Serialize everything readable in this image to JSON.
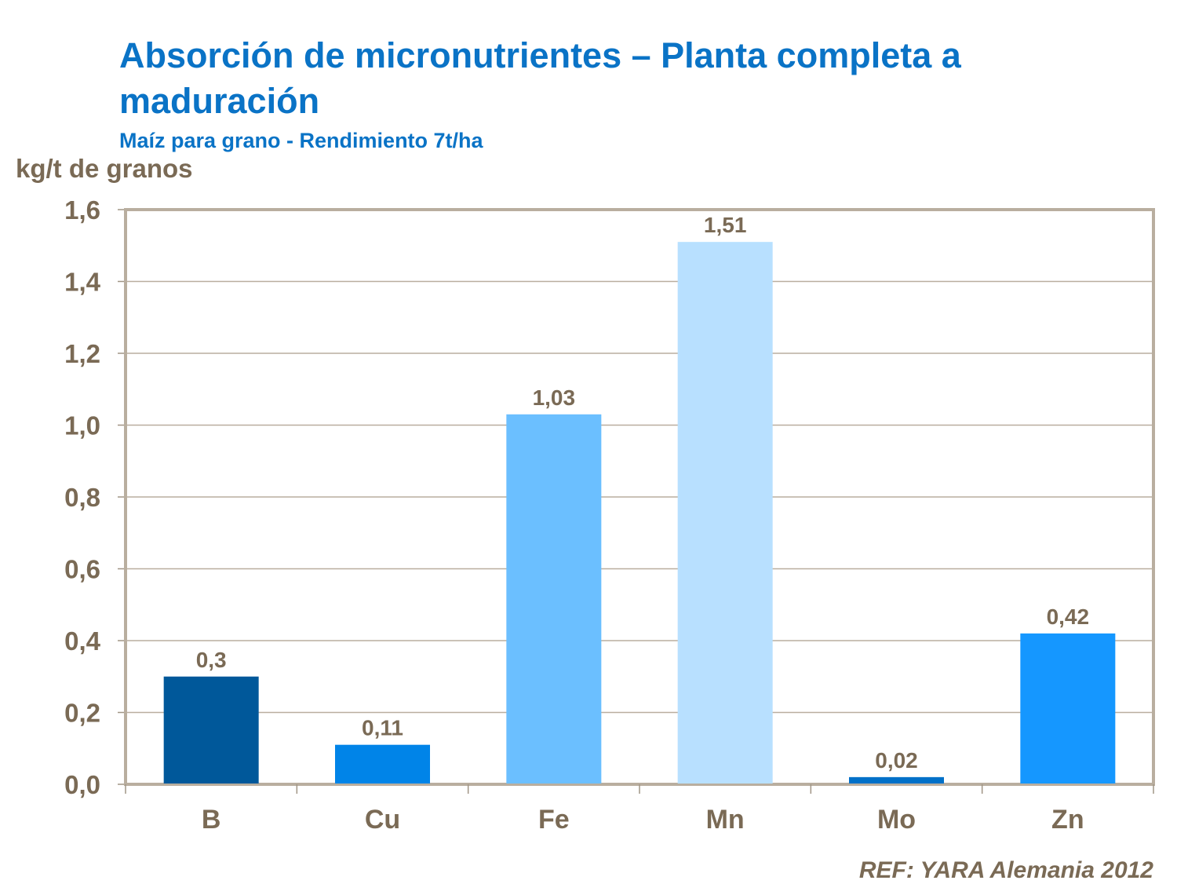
{
  "chart_data": {
    "type": "bar",
    "title": "Absorción de micronutrientes – Planta completa a maduración",
    "subtitle": "Maíz para grano - Rendimiento 7t/ha",
    "ylabel": "kg/t de granos",
    "xlabel": "",
    "categories": [
      "B",
      "Cu",
      "Fe",
      "Mn",
      "Mo",
      "Zn"
    ],
    "values": [
      0.3,
      0.11,
      1.03,
      1.51,
      0.02,
      0.42
    ],
    "data_labels": [
      "0,3",
      "0,11",
      "1,03",
      "1,51",
      "0,02",
      "0,42"
    ],
    "colors": [
      "#00589a",
      "#0084e8",
      "#6bbfff",
      "#b8e0ff",
      "#0070c8",
      "#1597ff"
    ],
    "ylim": [
      0,
      1.6
    ],
    "yticks": [
      "0,0",
      "0,2",
      "0,4",
      "0,6",
      "0,8",
      "1,0",
      "1,2",
      "1,4",
      "1,6"
    ],
    "grid": true,
    "legend": "none"
  },
  "reference": "REF: YARA Alemania 2012"
}
